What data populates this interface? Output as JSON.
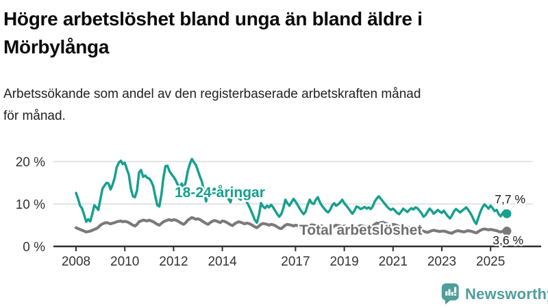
{
  "header": {
    "title_lines": [
      "Högre arbetslöshet bland unga än bland äldre i",
      "Mörbylånga"
    ],
    "subtitle_lines": [
      "Arbetssökande som andel av den registerbaserade arbetskraften månad",
      "för månad."
    ]
  },
  "footer": {
    "brand": "Newsworthy"
  },
  "colors": {
    "youth_line": "#15a08f",
    "total_line": "#7a7a7a",
    "total_label": "#6f6f6f",
    "axis": "#2e2e2e",
    "grid": "#dcdcdc",
    "tick_text": "#333333",
    "value_text": "#1a1a1a",
    "brand_teal": "#4f9e9c"
  },
  "chart_data": {
    "type": "line",
    "title": "Högre arbetslöshet bland unga än bland äldre i Mörbylånga",
    "subtitle": "Arbetssökande som andel av den registerbaserade arbetskraften månad för månad.",
    "x_start": 2008.0,
    "x_interval": "monthly",
    "xlim": [
      2007.9,
      2026.2
    ],
    "ylim": [
      0,
      22
    ],
    "grid": "horizontal",
    "yticks": [
      {
        "value": 0,
        "label": "0 %"
      },
      {
        "value": 10,
        "label": "10 %"
      },
      {
        "value": 20,
        "label": "20 %"
      }
    ],
    "xticks": [
      {
        "value": 2008,
        "label": "2008"
      },
      {
        "value": 2010,
        "label": "2010"
      },
      {
        "value": 2012,
        "label": "2012"
      },
      {
        "value": 2014,
        "label": "2014"
      },
      {
        "value": 2017,
        "label": "2017"
      },
      {
        "value": 2019,
        "label": "2019"
      },
      {
        "value": 2021,
        "label": "2021"
      },
      {
        "value": 2023,
        "label": "2023"
      },
      {
        "value": 2025,
        "label": "2025"
      }
    ],
    "series": [
      {
        "name": "18-24-åringar",
        "color": "#15a08f",
        "label_color": "#15a08f",
        "end_value": 7.7,
        "end_label": "7,7 %",
        "values": [
          12.6,
          11.2,
          9.6,
          8.9,
          7.4,
          5.8,
          6.4,
          5.9,
          7.6,
          9.7,
          9.2,
          8.6,
          11.2,
          13.6,
          14.3,
          15.0,
          14.8,
          13.4,
          14.6,
          16.2,
          18.6,
          19.7,
          20.2,
          19.4,
          19.7,
          18.2,
          16.9,
          13.6,
          11.8,
          11.6,
          13.2,
          17.4,
          18.0,
          16.4,
          16.7,
          16.2,
          16.0,
          15.3,
          14.2,
          11.8,
          9.7,
          9.4,
          12.2,
          16.2,
          18.9,
          19.0,
          17.7,
          17.0,
          16.4,
          15.6,
          14.6,
          13.8,
          14.8,
          13.6,
          15.2,
          17.8,
          19.4,
          20.6,
          19.8,
          19.2,
          17.8,
          16.4,
          15.2,
          12.8,
          10.6,
          12.8,
          13.4,
          12.6,
          13.6,
          13.2,
          12.6,
          12.2,
          13.2,
          12.8,
          12.0,
          11.2,
          10.4,
          12.4,
          12.8,
          11.8,
          11.4,
          11.0,
          11.6,
          11.2,
          10.5,
          9.6,
          8.6,
          7.4,
          6.2,
          5.6,
          7.4,
          10.2,
          9.4,
          9.0,
          9.6,
          9.2,
          9.8,
          9.2,
          8.4,
          7.6,
          7.0,
          7.6,
          9.0,
          11.0,
          10.2,
          9.6,
          10.4,
          11.2,
          10.6,
          9.8,
          9.0,
          8.2,
          7.6,
          8.2,
          9.8,
          11.0,
          10.2,
          10.0,
          11.0,
          11.6,
          10.4,
          9.6,
          9.0,
          8.4,
          8.0,
          8.6,
          9.6,
          10.2,
          9.6,
          9.9,
          10.4,
          11.0,
          10.2,
          9.6,
          9.0,
          8.3,
          7.7,
          8.4,
          9.4,
          9.2,
          8.8,
          9.0,
          9.3,
          8.9,
          9.2,
          8.8,
          9.4,
          10.6,
          11.3,
          11.8,
          11.2,
          10.6,
          10.0,
          9.4,
          8.9,
          8.6,
          8.9,
          8.4,
          7.9,
          7.6,
          8.2,
          8.9,
          8.5,
          8.1,
          8.6,
          9.0,
          8.7,
          9.2,
          9.0,
          8.4,
          7.8,
          7.0,
          7.4,
          8.2,
          8.9,
          8.4,
          7.7,
          8.1,
          8.6,
          8.2,
          7.9,
          8.4,
          7.7,
          7.1,
          6.6,
          7.3,
          8.3,
          8.8,
          8.4,
          8.0,
          8.4,
          8.8,
          9.2,
          8.6,
          7.9,
          7.0,
          5.9,
          5.3,
          6.8,
          8.2,
          9.2,
          9.9,
          9.4,
          8.9,
          9.6,
          9.0,
          8.3,
          8.6,
          7.6,
          7.1,
          7.9,
          8.4,
          7.7
        ]
      },
      {
        "name": "Total arbetslöshet",
        "color": "#7a7a7a",
        "label_color": "#6f6f6f",
        "end_value": 3.6,
        "end_label": "3,6 %",
        "values": [
          4.4,
          4.2,
          4.0,
          3.8,
          3.6,
          3.4,
          3.5,
          3.6,
          3.8,
          4.0,
          4.2,
          4.5,
          5.0,
          5.3,
          5.5,
          5.6,
          5.5,
          5.3,
          5.5,
          5.6,
          5.8,
          5.9,
          6.0,
          5.8,
          5.9,
          5.8,
          5.6,
          5.3,
          5.0,
          4.8,
          5.2,
          5.8,
          6.0,
          6.2,
          6.1,
          6.0,
          6.2,
          6.0,
          5.8,
          5.5,
          5.2,
          5.0,
          5.4,
          5.8,
          6.0,
          6.2,
          6.3,
          6.1,
          6.3,
          6.2,
          6.0,
          5.7,
          5.4,
          5.2,
          5.6,
          6.2,
          6.5,
          6.8,
          6.6,
          6.4,
          6.5,
          6.3,
          6.0,
          5.7,
          5.4,
          5.2,
          5.6,
          5.9,
          6.1,
          6.0,
          5.8,
          5.6,
          6.0,
          5.9,
          5.7,
          5.4,
          5.1,
          4.9,
          5.3,
          5.6,
          5.8,
          5.7,
          5.5,
          5.3,
          5.5,
          5.4,
          5.2,
          4.9,
          4.6,
          4.4,
          4.8,
          5.2,
          5.4,
          5.3,
          5.2,
          5.0,
          5.2,
          5.1,
          4.9,
          4.6,
          4.3,
          4.2,
          4.6,
          5.0,
          5.2,
          5.1,
          5.0,
          4.8,
          5.0,
          4.9,
          4.7,
          4.4,
          4.2,
          4.1,
          4.5,
          4.9,
          5.1,
          5.0,
          4.9,
          4.7,
          4.9,
          4.8,
          4.6,
          4.3,
          4.1,
          4.0,
          4.4,
          4.8,
          5.0,
          4.9,
          4.8,
          4.6,
          4.8,
          4.7,
          4.5,
          4.3,
          4.1,
          4.0,
          4.4,
          4.7,
          4.9,
          4.8,
          4.7,
          4.5,
          4.7,
          4.6,
          4.8,
          5.2,
          5.5,
          5.4,
          5.6,
          5.7,
          5.5,
          5.3,
          5.1,
          5.0,
          5.2,
          5.1,
          4.9,
          4.7,
          4.5,
          4.3,
          4.5,
          4.6,
          4.4,
          4.2,
          4.0,
          3.9,
          4.0,
          3.9,
          3.8,
          3.6,
          3.4,
          3.3,
          3.5,
          3.7,
          3.8,
          3.7,
          3.6,
          3.5,
          3.6,
          3.6,
          3.5,
          3.3,
          3.2,
          3.1,
          3.4,
          3.6,
          3.7,
          3.6,
          3.5,
          3.4,
          3.6,
          3.7,
          3.6,
          3.5,
          3.3,
          3.2,
          3.5,
          3.8,
          4.0,
          4.1,
          4.0,
          3.9,
          4.0,
          3.9,
          3.8,
          3.7,
          3.5,
          3.4,
          3.6,
          3.8,
          3.6
        ]
      }
    ]
  }
}
